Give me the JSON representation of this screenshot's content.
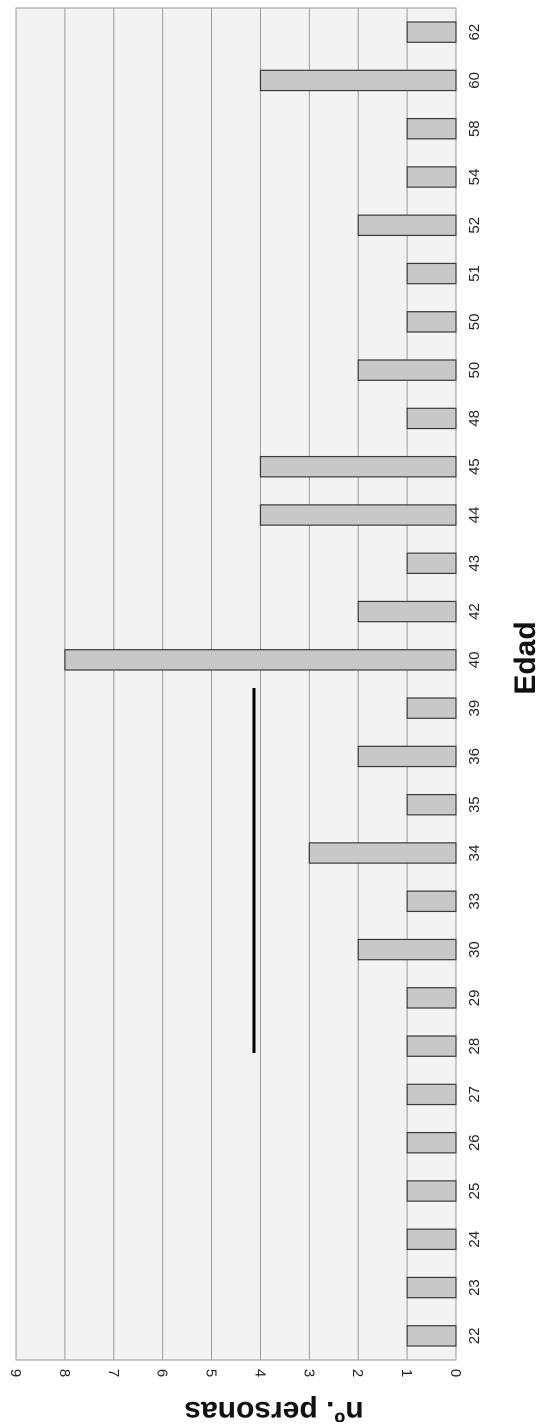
{
  "chart_data": {
    "type": "bar",
    "orientation": "rotated",
    "xlabel": "Edad",
    "ylabel": "nº. personas",
    "categories": [
      "22",
      "23",
      "24",
      "25",
      "26",
      "27",
      "28",
      "29",
      "30",
      "33",
      "34",
      "35",
      "36",
      "39",
      "40",
      "42",
      "43",
      "44",
      "45",
      "48",
      "50",
      "50",
      "51",
      "52",
      "54",
      "58",
      "60",
      "62"
    ],
    "values": [
      1,
      1,
      1,
      1,
      1,
      1,
      1,
      1,
      2,
      1,
      3,
      1,
      2,
      1,
      8,
      2,
      1,
      4,
      4,
      1,
      2,
      1,
      1,
      2,
      1,
      1,
      4,
      1
    ],
    "ylim": [
      0,
      9
    ],
    "yticks": [
      "0",
      "1",
      "2",
      "3",
      "4",
      "5",
      "6",
      "7",
      "8",
      "9"
    ],
    "grid": true,
    "colors": {
      "bar_fill": "#c8c8c8",
      "bar_stroke": "#3a3a3a",
      "plot_bg": "#f3f3f3",
      "grid": "#9a9a9a"
    }
  }
}
